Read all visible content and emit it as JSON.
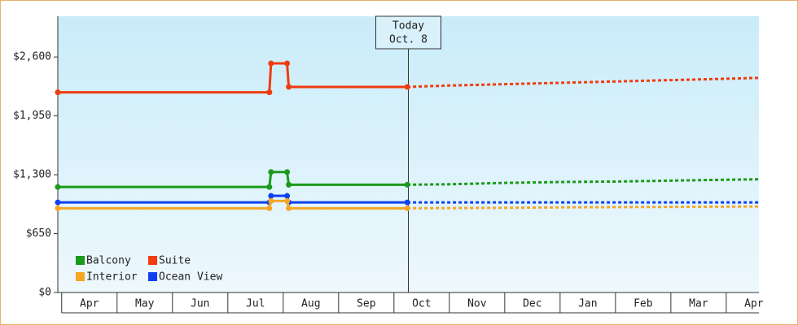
{
  "chart_data": {
    "type": "line",
    "x": [
      -0.07,
      3.75,
      3.78,
      4.07,
      4.1,
      6.24,
      7,
      8,
      9,
      10,
      11,
      12,
      12.59
    ],
    "xlim": [
      -0.07,
      12.59
    ],
    "xticks": [
      {
        "value": 0.5,
        "label": "Apr"
      },
      {
        "value": 1.5,
        "label": "May"
      },
      {
        "value": 2.5,
        "label": "Jun"
      },
      {
        "value": 3.5,
        "label": "Jul"
      },
      {
        "value": 4.5,
        "label": "Aug"
      },
      {
        "value": 5.5,
        "label": "Sep"
      },
      {
        "value": 6.5,
        "label": "Oct"
      },
      {
        "value": 7.5,
        "label": "Nov"
      },
      {
        "value": 8.5,
        "label": "Dec"
      },
      {
        "value": 9.5,
        "label": "Jan"
      },
      {
        "value": 10.5,
        "label": "Feb"
      },
      {
        "value": 11.5,
        "label": "Mar"
      },
      {
        "value": 12.5,
        "label": "Apr"
      }
    ],
    "ylim": [
      0,
      3050
    ],
    "yticks": [
      {
        "value": 0,
        "label": "$0"
      },
      {
        "value": 650,
        "label": "$650"
      },
      {
        "value": 1300,
        "label": "$1,300"
      },
      {
        "value": 1950,
        "label": "$1,950"
      },
      {
        "value": 2600,
        "label": "$2,600"
      }
    ],
    "series": [
      {
        "name": "Balcony",
        "color": "#1a9a1a",
        "values": [
          1165,
          1165,
          1330,
          1330,
          1190,
          1190,
          1195,
          1210,
          1220,
          1225,
          1235,
          1245,
          1250
        ]
      },
      {
        "name": "Suite",
        "color": "#f03c0f",
        "values": [
          2210,
          2210,
          2530,
          2530,
          2270,
          2270,
          2285,
          2300,
          2315,
          2330,
          2345,
          2360,
          2370
        ]
      },
      {
        "name": "Interior",
        "color": "#f5a623",
        "values": [
          930,
          930,
          1010,
          1010,
          930,
          930,
          932,
          935,
          940,
          943,
          945,
          948,
          950
        ]
      },
      {
        "name": "Ocean View",
        "color": "#1040f0",
        "values": [
          995,
          995,
          1067,
          1067,
          995,
          995,
          995,
          995,
          995,
          995,
          995,
          995,
          995
        ]
      }
    ],
    "annotation": {
      "x": 6.26,
      "lines": [
        "Today",
        "Oct. 8"
      ]
    },
    "legend": "lower-left"
  }
}
